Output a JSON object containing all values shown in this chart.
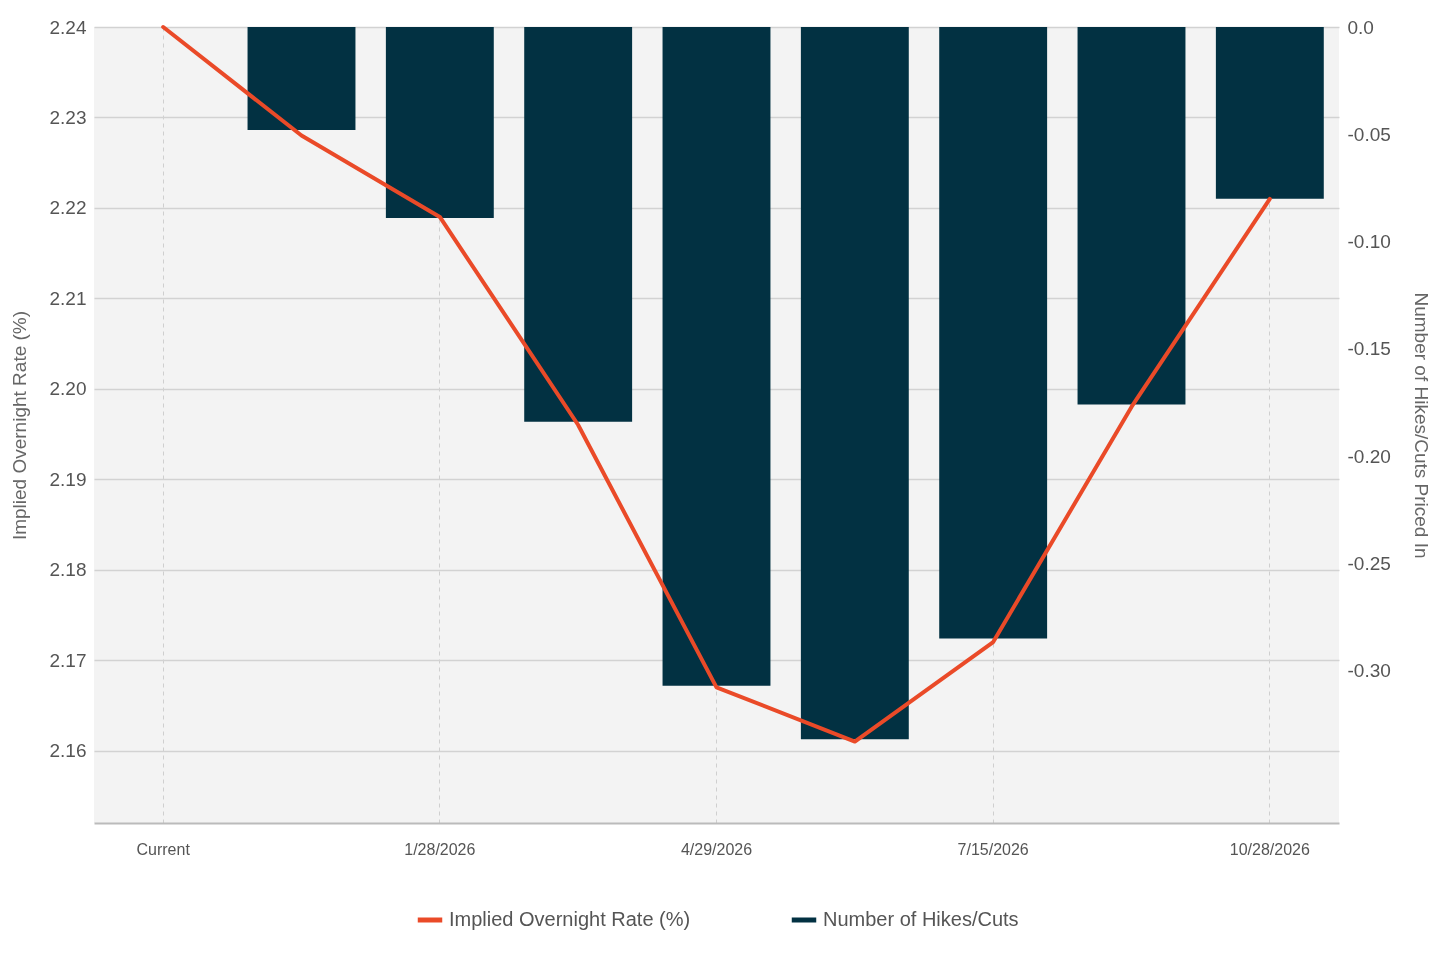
{
  "chart_data": {
    "type": "bar",
    "categories": [
      "Current",
      null,
      "1/28/2026",
      null,
      "4/29/2026",
      null,
      "7/15/2026",
      null,
      "10/28/2026"
    ],
    "series": [
      {
        "name": "Implied Overnight Rate (%)",
        "type": "line",
        "axis": "y",
        "color": "#ea4a28",
        "values": [
          2.24,
          2.228,
          2.219,
          2.196,
          2.167,
          2.161,
          2.172,
          2.198,
          2.221
        ]
      },
      {
        "name": "Number of Hikes/Cuts",
        "axis": "y2",
        "color": "#023142",
        "values": [
          0,
          -0.048,
          -0.089,
          -0.184,
          -0.307,
          -0.332,
          -0.285,
          -0.176,
          -0.08
        ]
      }
    ],
    "ylabel": "Implied Overnight Rate (%)",
    "y2label": "Number of Hikes/Cuts Priced In",
    "ylim": [
      2.152,
      2.24
    ],
    "yticks": [
      2.16,
      2.17,
      2.18,
      2.19,
      {
        "value": 2.2,
        "label": "2.20"
      },
      2.21,
      2.22,
      2.23,
      2.24
    ],
    "y2lim": [
      -0.371,
      0
    ],
    "y2ticks": [
      {
        "value": -0.3,
        "label": "-0.30"
      },
      -0.25,
      {
        "value": -0.2,
        "label": "-0.20"
      },
      -0.15,
      {
        "value": -0.1,
        "label": "-0.10"
      },
      -0.05,
      {
        "value": 0,
        "label": "0.0"
      }
    ],
    "grid": true,
    "legend": "bottom"
  }
}
